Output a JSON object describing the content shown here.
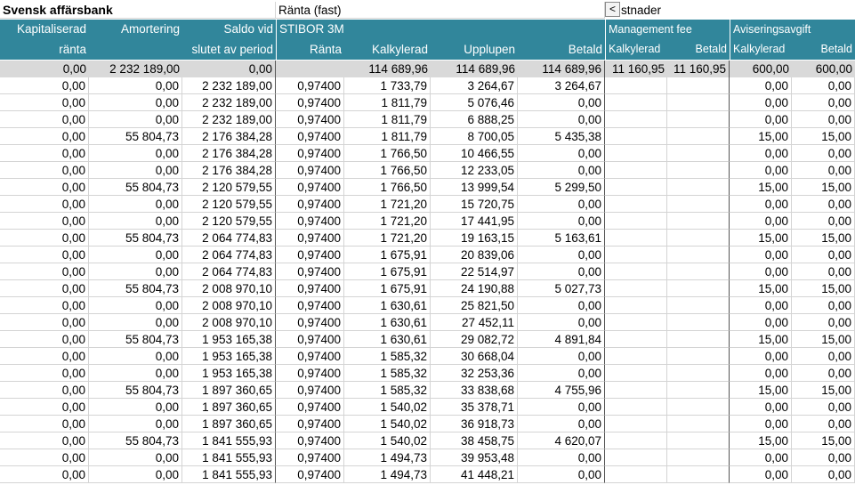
{
  "title": "Svensk affärsbank",
  "rate_fixed_label": "Ränta (fast)",
  "scroll_left_button": "<",
  "costs_label_partial": "stnader",
  "headers": {
    "kapitaliserad_1": "Kapitaliserad",
    "kapitaliserad_2": "ränta",
    "amortering": "Amortering",
    "saldo_1": "Saldo vid",
    "saldo_2": "slutet av period",
    "stibor": "STIBOR 3M",
    "ranta": "Ränta",
    "kalkylerad": "Kalkylerad",
    "upplupen": "Upplupen",
    "betald": "Betald",
    "management_fee": "Management fee",
    "mgmt_kalkylerad": "Kalkylerad",
    "mgmt_betald": "Betald",
    "aviseringsavgift": "Aviseringsavgift",
    "avis_kalkylerad": "Kalkylerad",
    "avis_betald": "Betald"
  },
  "totals": {
    "kapitaliserad": "0,00",
    "amortering": "2 232 189,00",
    "saldo": "0,00",
    "ranta": "",
    "kalkylerad": "114 689,96",
    "upplupen": "114 689,96",
    "betald": "114 689,96",
    "mgmt_kalk": "11 160,95",
    "mgmt_betald": "11 160,95",
    "avis_kalk": "600,00",
    "avis_betald": "600,00"
  },
  "rows": [
    [
      "0,00",
      "0,00",
      "2 232 189,00",
      "0,97400",
      "1 733,79",
      "3 264,67",
      "3 264,67",
      "",
      "",
      "0,00",
      "0,00"
    ],
    [
      "0,00",
      "0,00",
      "2 232 189,00",
      "0,97400",
      "1 811,79",
      "5 076,46",
      "0,00",
      "",
      "",
      "0,00",
      "0,00"
    ],
    [
      "0,00",
      "0,00",
      "2 232 189,00",
      "0,97400",
      "1 811,79",
      "6 888,25",
      "0,00",
      "",
      "",
      "0,00",
      "0,00"
    ],
    [
      "0,00",
      "55 804,73",
      "2 176 384,28",
      "0,97400",
      "1 811,79",
      "8 700,05",
      "5 435,38",
      "",
      "",
      "15,00",
      "15,00"
    ],
    [
      "0,00",
      "0,00",
      "2 176 384,28",
      "0,97400",
      "1 766,50",
      "10 466,55",
      "0,00",
      "",
      "",
      "0,00",
      "0,00"
    ],
    [
      "0,00",
      "0,00",
      "2 176 384,28",
      "0,97400",
      "1 766,50",
      "12 233,05",
      "0,00",
      "",
      "",
      "0,00",
      "0,00"
    ],
    [
      "0,00",
      "55 804,73",
      "2 120 579,55",
      "0,97400",
      "1 766,50",
      "13 999,54",
      "5 299,50",
      "",
      "",
      "15,00",
      "15,00"
    ],
    [
      "0,00",
      "0,00",
      "2 120 579,55",
      "0,97400",
      "1 721,20",
      "15 720,75",
      "0,00",
      "",
      "",
      "0,00",
      "0,00"
    ],
    [
      "0,00",
      "0,00",
      "2 120 579,55",
      "0,97400",
      "1 721,20",
      "17 441,95",
      "0,00",
      "",
      "",
      "0,00",
      "0,00"
    ],
    [
      "0,00",
      "55 804,73",
      "2 064 774,83",
      "0,97400",
      "1 721,20",
      "19 163,15",
      "5 163,61",
      "",
      "",
      "15,00",
      "15,00"
    ],
    [
      "0,00",
      "0,00",
      "2 064 774,83",
      "0,97400",
      "1 675,91",
      "20 839,06",
      "0,00",
      "",
      "",
      "0,00",
      "0,00"
    ],
    [
      "0,00",
      "0,00",
      "2 064 774,83",
      "0,97400",
      "1 675,91",
      "22 514,97",
      "0,00",
      "",
      "",
      "0,00",
      "0,00"
    ],
    [
      "0,00",
      "55 804,73",
      "2 008 970,10",
      "0,97400",
      "1 675,91",
      "24 190,88",
      "5 027,73",
      "",
      "",
      "15,00",
      "15,00"
    ],
    [
      "0,00",
      "0,00",
      "2 008 970,10",
      "0,97400",
      "1 630,61",
      "25 821,50",
      "0,00",
      "",
      "",
      "0,00",
      "0,00"
    ],
    [
      "0,00",
      "0,00",
      "2 008 970,10",
      "0,97400",
      "1 630,61",
      "27 452,11",
      "0,00",
      "",
      "",
      "0,00",
      "0,00"
    ],
    [
      "0,00",
      "55 804,73",
      "1 953 165,38",
      "0,97400",
      "1 630,61",
      "29 082,72",
      "4 891,84",
      "",
      "",
      "15,00",
      "15,00"
    ],
    [
      "0,00",
      "0,00",
      "1 953 165,38",
      "0,97400",
      "1 585,32",
      "30 668,04",
      "0,00",
      "",
      "",
      "0,00",
      "0,00"
    ],
    [
      "0,00",
      "0,00",
      "1 953 165,38",
      "0,97400",
      "1 585,32",
      "32 253,36",
      "0,00",
      "",
      "",
      "0,00",
      "0,00"
    ],
    [
      "0,00",
      "55 804,73",
      "1 897 360,65",
      "0,97400",
      "1 585,32",
      "33 838,68",
      "4 755,96",
      "",
      "",
      "15,00",
      "15,00"
    ],
    [
      "0,00",
      "0,00",
      "1 897 360,65",
      "0,97400",
      "1 540,02",
      "35 378,71",
      "0,00",
      "",
      "",
      "0,00",
      "0,00"
    ],
    [
      "0,00",
      "0,00",
      "1 897 360,65",
      "0,97400",
      "1 540,02",
      "36 918,73",
      "0,00",
      "",
      "",
      "0,00",
      "0,00"
    ],
    [
      "0,00",
      "55 804,73",
      "1 841 555,93",
      "0,97400",
      "1 540,02",
      "38 458,75",
      "4 620,07",
      "",
      "",
      "15,00",
      "15,00"
    ],
    [
      "0,00",
      "0,00",
      "1 841 555,93",
      "0,97400",
      "1 494,73",
      "39 953,48",
      "0,00",
      "",
      "",
      "0,00",
      "0,00"
    ],
    [
      "0,00",
      "0,00",
      "1 841 555,93",
      "0,97400",
      "1 494,73",
      "41 448,21",
      "0,00",
      "",
      "",
      "0,00",
      "0,00"
    ]
  ]
}
